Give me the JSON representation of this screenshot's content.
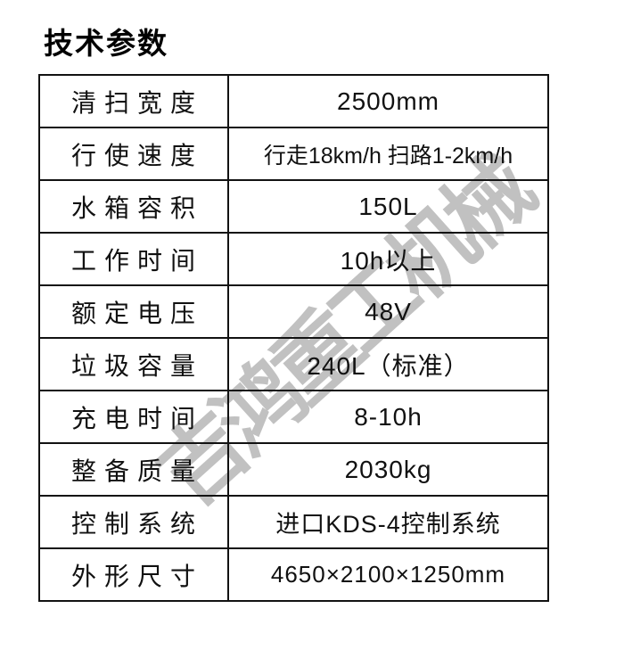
{
  "title": "技术参数",
  "watermark": {
    "text": "吉鸿重工机械",
    "color": "#8f8f8f"
  },
  "colors": {
    "border": "#121212",
    "text": "#111111",
    "background": "#ffffff"
  },
  "table": {
    "rows": [
      {
        "label": "清扫宽度",
        "value": "2500mm"
      },
      {
        "label": "行使速度",
        "value": "行走18km/h 扫路1-2km/h"
      },
      {
        "label": "水箱容积",
        "value": "150L"
      },
      {
        "label": "工作时间",
        "value": "10h以上"
      },
      {
        "label": "额定电压",
        "value": "48V"
      },
      {
        "label": "垃圾容量",
        "value": "240L（标准）"
      },
      {
        "label": "充电时间",
        "value": "8-10h"
      },
      {
        "label": "整备质量",
        "value": "2030kg"
      },
      {
        "label": "控制系统",
        "value": "进口KDS-4控制系统"
      },
      {
        "label": "外形尺寸",
        "value": "4650×2100×1250mm"
      }
    ]
  }
}
